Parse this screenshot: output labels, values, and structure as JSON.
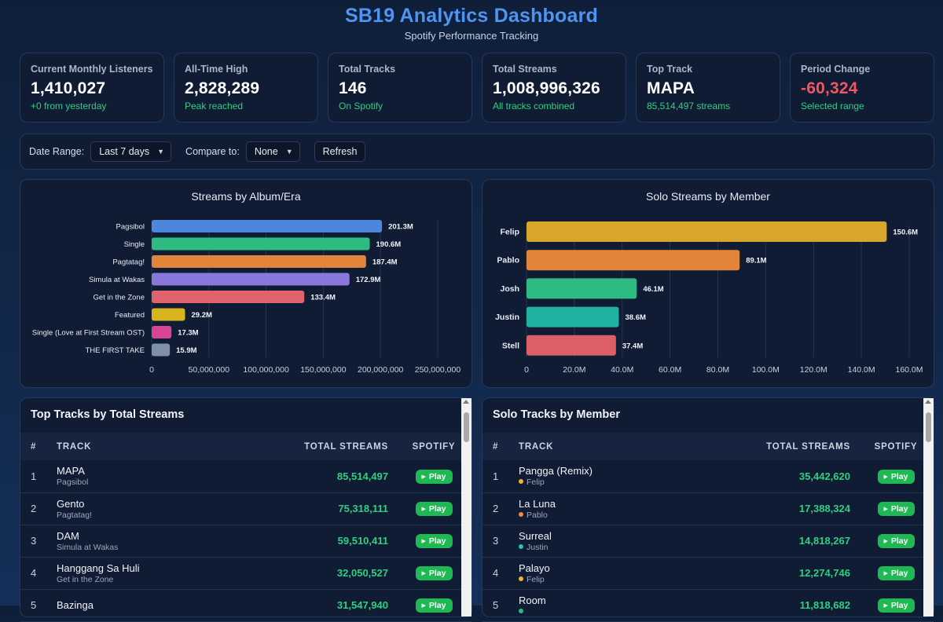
{
  "header": {
    "title": "SB19 Analytics Dashboard",
    "subtitle": "Spotify Performance Tracking"
  },
  "stats": [
    {
      "label": "Current Monthly Listeners",
      "value": "1,410,027",
      "note": "+0 from yesterday"
    },
    {
      "label": "All-Time High",
      "value": "2,828,289",
      "note": "Peak reached"
    },
    {
      "label": "Total Tracks",
      "value": "146",
      "note": "On Spotify"
    },
    {
      "label": "Total Streams",
      "value": "1,008,996,326",
      "note": "All tracks combined"
    },
    {
      "label": "Top Track",
      "value": "MAPA",
      "note": "85,514,497 streams"
    },
    {
      "label": "Period Change",
      "value": "-60,324",
      "note": "Selected range"
    }
  ],
  "controls": {
    "date_range_label": "Date Range:",
    "date_range_value": "Last 7 days",
    "compare_label": "Compare to:",
    "compare_value": "None",
    "refresh_label": "Refresh"
  },
  "chart_data": [
    {
      "type": "bar",
      "orientation": "horizontal",
      "title": "Streams by Album/Era",
      "categories": [
        "Pagsibol",
        "Single",
        "Pagtatag!",
        "Simula at Wakas",
        "Get in the Zone",
        "Featured",
        "Single (Love at First Stream OST)",
        "THE FIRST TAKE"
      ],
      "values": [
        201300000,
        190600000,
        187400000,
        172900000,
        133400000,
        29200000,
        17300000,
        15900000
      ],
      "labels": [
        "201.3M",
        "190.6M",
        "187.4M",
        "172.9M",
        "133.4M",
        "29.2M",
        "17.3M",
        "15.9M"
      ],
      "colors": [
        "#4d87dc",
        "#2dbb82",
        "#e2843a",
        "#8a77dc",
        "#e0636b",
        "#d8b51e",
        "#d84592",
        "#7e8fa8"
      ],
      "xlim": [
        0,
        250000000
      ],
      "xticks": [
        "0",
        "50,000,000",
        "100,000,000",
        "150,000,000",
        "200,000,000",
        "250,000,000"
      ]
    },
    {
      "type": "bar",
      "orientation": "horizontal",
      "title": "Solo Streams by Member",
      "categories": [
        "Felip",
        "Pablo",
        "Josh",
        "Justin",
        "Stell"
      ],
      "values": [
        150600000,
        89100000,
        46100000,
        38600000,
        37400000
      ],
      "labels": [
        "150.6M",
        "89.1M",
        "46.1M",
        "38.6M",
        "37.4M"
      ],
      "colors": [
        "#d9a52a",
        "#e2843a",
        "#2dbb82",
        "#20b2a0",
        "#dc5e66"
      ],
      "xlim": [
        0,
        160000000
      ],
      "xticks": [
        "0",
        "20.0M",
        "40.0M",
        "60.0M",
        "80.0M",
        "100.0M",
        "120.0M",
        "140.0M",
        "160.0M"
      ]
    }
  ],
  "top_tracks": {
    "title": "Top Tracks by Total Streams",
    "columns": [
      "#",
      "TRACK",
      "TOTAL STREAMS",
      "SPOTIFY"
    ],
    "play_label": "Play",
    "rows": [
      {
        "rank": "1",
        "name": "MAPA",
        "sub": "Pagsibol",
        "streams": "85,514,497"
      },
      {
        "rank": "2",
        "name": "Gento",
        "sub": "Pagtatag!",
        "streams": "75,318,111"
      },
      {
        "rank": "3",
        "name": "DAM",
        "sub": "Simula at Wakas",
        "streams": "59,510,411"
      },
      {
        "rank": "4",
        "name": "Hanggang Sa Huli",
        "sub": "Get in the Zone",
        "streams": "32,050,527"
      },
      {
        "rank": "5",
        "name": "Bazinga",
        "sub": "",
        "streams": "31,547,940"
      }
    ]
  },
  "solo_tracks": {
    "title": "Solo Tracks by Member",
    "columns": [
      "#",
      "TRACK",
      "TOTAL STREAMS",
      "SPOTIFY"
    ],
    "play_label": "Play",
    "rows": [
      {
        "rank": "1",
        "name": "Pangga (Remix)",
        "sub": "Felip",
        "dot": "#f2b52f",
        "streams": "35,442,620"
      },
      {
        "rank": "2",
        "name": "La Luna",
        "sub": "Pablo",
        "dot": "#f08a3a",
        "streams": "17,388,324"
      },
      {
        "rank": "3",
        "name": "Surreal",
        "sub": "Justin",
        "dot": "#2bc0b0",
        "streams": "14,818,267"
      },
      {
        "rank": "4",
        "name": "Palayo",
        "sub": "Felip",
        "dot": "#f2b52f",
        "streams": "12,274,746"
      },
      {
        "rank": "5",
        "name": "Room",
        "sub": "",
        "dot": "#2dbb82",
        "streams": "11,818,682"
      }
    ]
  }
}
